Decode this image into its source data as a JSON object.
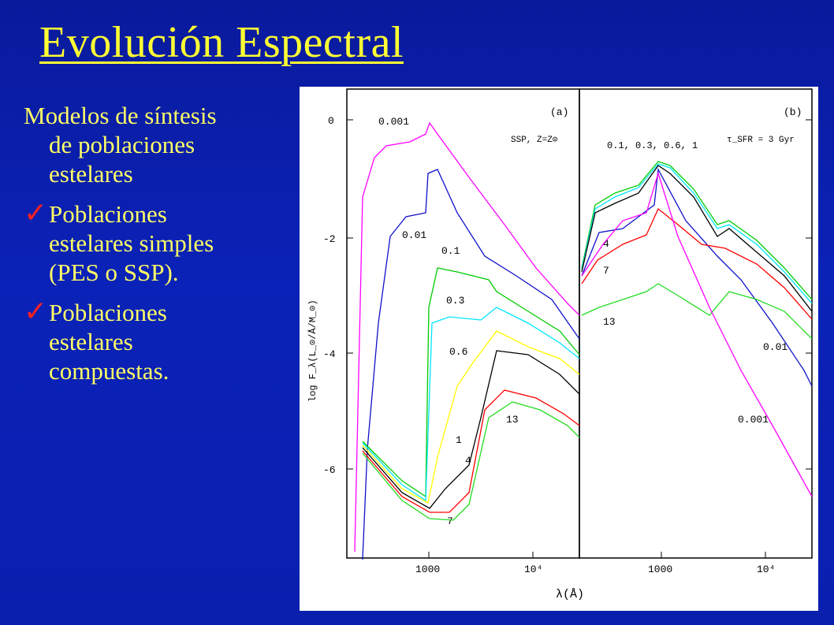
{
  "slide": {
    "title": "Evolución Espectral",
    "intro_line1": "Modelos de síntesis",
    "intro_line2": "de poblaciones",
    "intro_line3": "estelares",
    "bullets": [
      {
        "lines": [
          "Poblaciones",
          "estelares simples",
          "(PES o SSP)."
        ]
      },
      {
        "lines": [
          "Poblaciones",
          "estelares",
          "compuestas."
        ]
      }
    ],
    "check_glyph": "✓"
  },
  "colors": {
    "title": "#ffff33",
    "text": "#ffff66",
    "check": "#ff2020",
    "background": "#0b22b8"
  },
  "chart_data": {
    "type": "line",
    "ylabel": "log F_λ(L_⊙/Å/M_⊙)",
    "xlabel": "λ(Å)",
    "x_scale": "log",
    "y_ticks": [
      "0",
      "-2",
      "-4",
      "-6"
    ],
    "x_ticks": [
      "1000",
      "10⁴"
    ],
    "panels": [
      {
        "label": "(a)",
        "annotation": "SSP, Z=Z⊙",
        "series_labels": [
          "0.001",
          "0.01",
          "0.1",
          "0.3",
          "0.6",
          "1",
          "4",
          "7",
          "13"
        ]
      },
      {
        "label": "(b)",
        "annotation": "τ_SFR = 3 Gyr",
        "header_labels": "0.1, 0.3, 0.6, 1",
        "series_labels": [
          "4",
          "7",
          "13",
          "0.01",
          "0.001"
        ]
      }
    ]
  }
}
